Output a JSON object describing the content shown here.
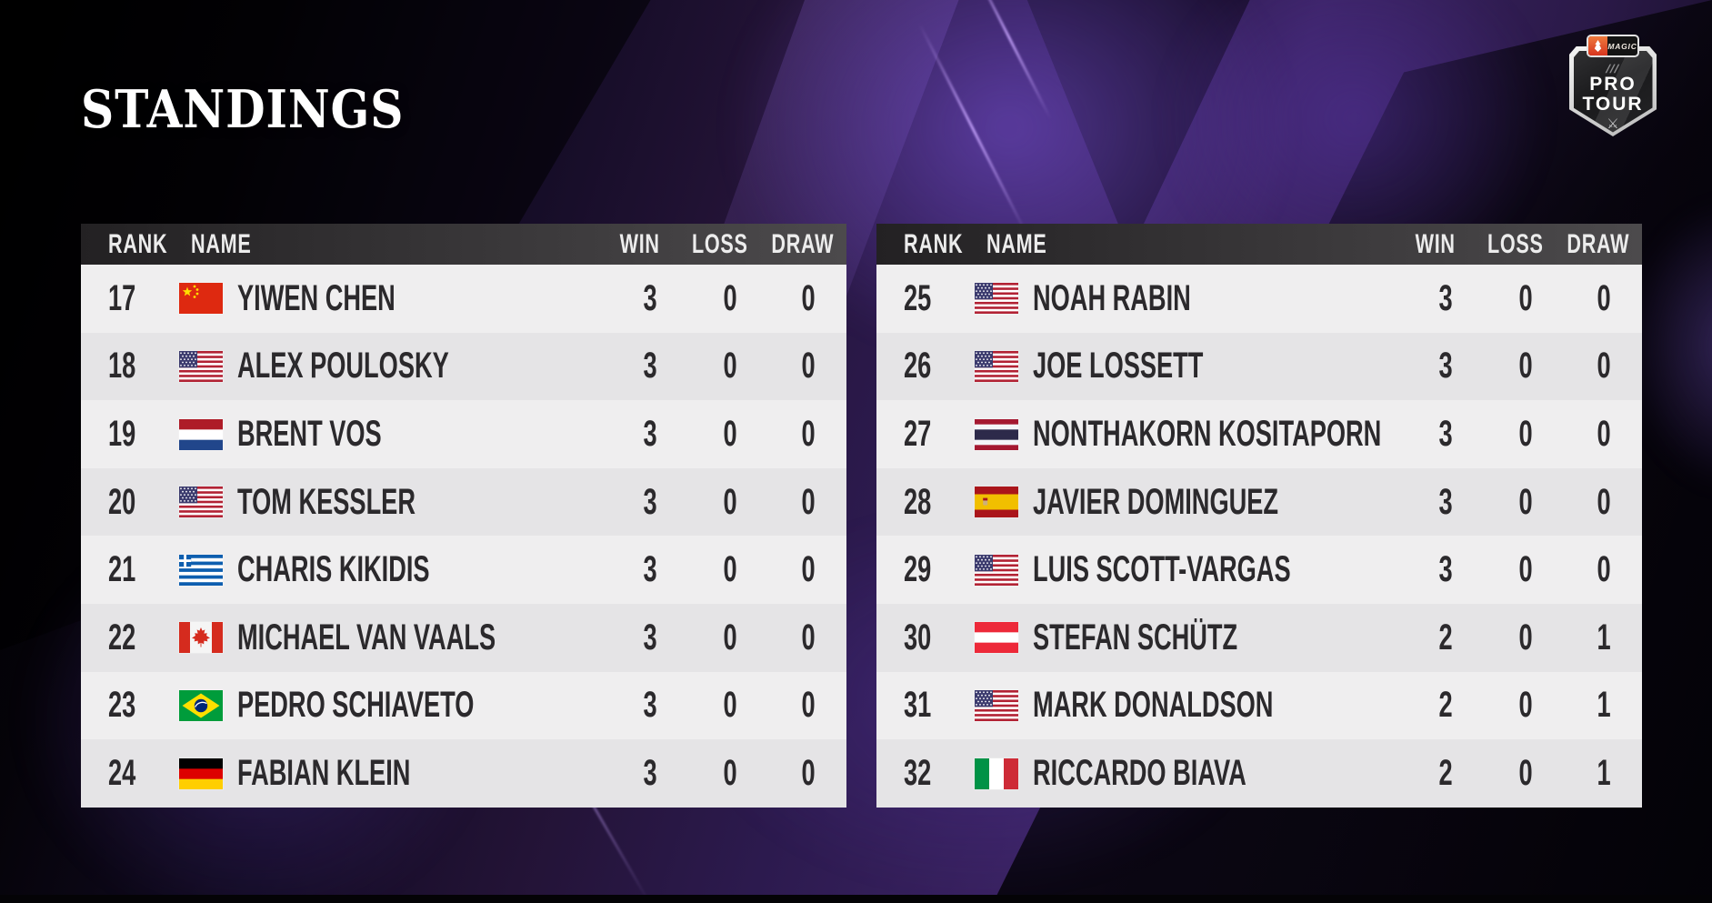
{
  "title": "STANDINGS",
  "logo": {
    "magic": "MAGIC",
    "hashes": "///",
    "line1": "PRO",
    "line2": "TOUR",
    "sword_icon": "⚔"
  },
  "tables": [
    {
      "headers": {
        "rank": "RANK",
        "name": "NAME",
        "win": "WIN",
        "loss": "LOSS",
        "draw": "DRAW"
      },
      "rows": [
        {
          "rank": "17",
          "flag": "cn",
          "name": "YIWEN CHEN",
          "win": "3",
          "loss": "0",
          "draw": "0"
        },
        {
          "rank": "18",
          "flag": "us",
          "name": "ALEX POULOSKY",
          "win": "3",
          "loss": "0",
          "draw": "0"
        },
        {
          "rank": "19",
          "flag": "nl",
          "name": "BRENT VOS",
          "win": "3",
          "loss": "0",
          "draw": "0"
        },
        {
          "rank": "20",
          "flag": "us",
          "name": "TOM KESSLER",
          "win": "3",
          "loss": "0",
          "draw": "0"
        },
        {
          "rank": "21",
          "flag": "gr",
          "name": "CHARIS KIKIDIS",
          "win": "3",
          "loss": "0",
          "draw": "0"
        },
        {
          "rank": "22",
          "flag": "ca",
          "name": "MICHAEL VAN VAALS",
          "win": "3",
          "loss": "0",
          "draw": "0"
        },
        {
          "rank": "23",
          "flag": "br",
          "name": "PEDRO SCHIAVETO",
          "win": "3",
          "loss": "0",
          "draw": "0"
        },
        {
          "rank": "24",
          "flag": "de",
          "name": "FABIAN KLEIN",
          "win": "3",
          "loss": "0",
          "draw": "0"
        }
      ]
    },
    {
      "headers": {
        "rank": "RANK",
        "name": "NAME",
        "win": "WIN",
        "loss": "LOSS",
        "draw": "DRAW"
      },
      "rows": [
        {
          "rank": "25",
          "flag": "us",
          "name": "NOAH RABIN",
          "win": "3",
          "loss": "0",
          "draw": "0"
        },
        {
          "rank": "26",
          "flag": "us",
          "name": "JOE LOSSETT",
          "win": "3",
          "loss": "0",
          "draw": "0"
        },
        {
          "rank": "27",
          "flag": "th",
          "name": "NONTHAKORN KOSITAPORN",
          "win": "3",
          "loss": "0",
          "draw": "0"
        },
        {
          "rank": "28",
          "flag": "es",
          "name": "JAVIER DOMINGUEZ",
          "win": "3",
          "loss": "0",
          "draw": "0"
        },
        {
          "rank": "29",
          "flag": "us",
          "name": "LUIS SCOTT-VARGAS",
          "win": "3",
          "loss": "0",
          "draw": "0"
        },
        {
          "rank": "30",
          "flag": "at",
          "name": "STEFAN SCHÜTZ",
          "win": "2",
          "loss": "0",
          "draw": "1"
        },
        {
          "rank": "31",
          "flag": "us",
          "name": "MARK DONALDSON",
          "win": "2",
          "loss": "0",
          "draw": "1"
        },
        {
          "rank": "32",
          "flag": "it",
          "name": "RICCARDO BIAVA",
          "win": "2",
          "loss": "0",
          "draw": "1"
        }
      ]
    }
  ],
  "colors": {
    "header_gradient_start": "#232123",
    "header_gradient_end": "#4c4a4c",
    "row_light": "#efeeef",
    "row_dark": "#e5e4e6",
    "row_text": "#2b292c",
    "background_purple": "#2c1a4e",
    "logo_orange": "#e04724",
    "title_color": "#ffffff"
  }
}
